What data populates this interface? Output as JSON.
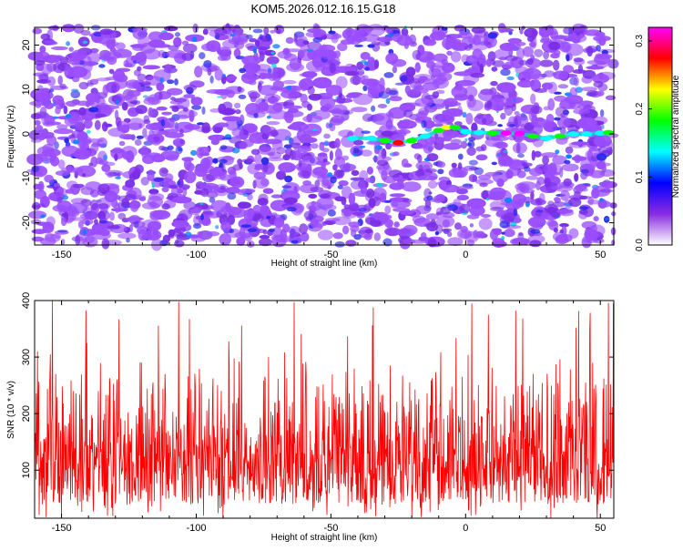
{
  "title": "KOM5.2026.012.16.15.G18",
  "chart_data": [
    {
      "type": "heatmap",
      "xlabel": "Height of straight line (km)",
      "ylabel": "Frequency (Hz)",
      "xlim": [
        -160,
        55
      ],
      "ylim": [
        -25,
        24
      ],
      "x_ticks": [
        -150,
        -100,
        -50,
        0,
        50
      ],
      "y_ticks": [
        -20,
        -10,
        0,
        10,
        20
      ],
      "colorbar": {
        "label": "Normalized spectral amplitude",
        "range": [
          0.0,
          0.32
        ],
        "ticks": [
          0.0,
          0.1,
          0.2,
          0.3
        ],
        "tick_labels": [
          "0.0",
          "0.1",
          "0.2",
          "0.3"
        ],
        "colors": [
          "#ffffff",
          "#8a2be2",
          "#0000ff",
          "#00ffff",
          "#00ff00",
          "#ffff00",
          "#ff0000",
          "#ff00ff"
        ]
      },
      "signal_trace": {
        "x": [
          -42,
          -35,
          -30,
          -25,
          -20,
          -15,
          -10,
          -7,
          -4,
          0,
          5,
          10,
          15,
          20,
          25,
          30,
          35,
          40,
          45,
          50,
          53
        ],
        "y": [
          -1,
          -1,
          -1.5,
          -2,
          -1.5,
          -0.5,
          0.8,
          1.5,
          1.5,
          0.5,
          0.3,
          0.2,
          0.2,
          0.1,
          -0.5,
          -1,
          -0.5,
          0,
          0,
          0.2,
          0.3
        ],
        "amplitude": [
          0.14,
          0.15,
          0.2,
          0.27,
          0.2,
          0.14,
          0.18,
          0.24,
          0.2,
          0.15,
          0.13,
          0.2,
          0.3,
          0.3,
          0.18,
          0.15,
          0.16,
          0.14,
          0.13,
          0.14,
          0.17
        ]
      },
      "grid": false
    },
    {
      "type": "line",
      "xlabel": "Height of straight line (km)",
      "ylabel": "SNR (10 * v/v)",
      "xlim": [
        -160,
        55
      ],
      "ylim": [
        15,
        400
      ],
      "x_ticks": [
        -150,
        -100,
        -50,
        0,
        50
      ],
      "y_ticks": [
        100,
        200,
        300,
        400
      ],
      "series_color": "#ff0000",
      "typical_range": [
        40,
        300
      ],
      "max_value": 400,
      "grid": false
    }
  ]
}
